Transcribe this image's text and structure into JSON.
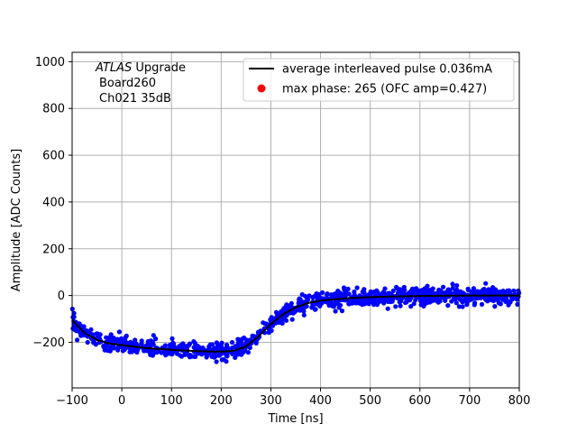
{
  "chart_data": {
    "type": "scatter",
    "xlabel": "Time [ns]",
    "ylabel": "Amplitude [ADC Counts]",
    "xlim": [
      -100,
      800
    ],
    "ylim": [
      -395,
      1040
    ],
    "x_ticks": [
      -100,
      0,
      100,
      200,
      300,
      400,
      500,
      600,
      700,
      800
    ],
    "y_ticks": [
      -200,
      0,
      200,
      400,
      600,
      800,
      1000
    ],
    "grid": true,
    "legend_position": "top-right",
    "annotation": {
      "line1_italic": "ATLAS",
      "line1_rest": " Upgrade",
      "line2": "Board260",
      "line3": "Ch021 35dB"
    },
    "series": [
      {
        "name": "average interleaved pulse 0.036mA",
        "kind": "line",
        "color": "#000000",
        "x": [
          -100,
          -75,
          -50,
          -25,
          0,
          50,
          100,
          150,
          200,
          225,
          250,
          275,
          300,
          325,
          350,
          375,
          400,
          450,
          500,
          550,
          600,
          700,
          800
        ],
        "y": [
          -105,
          -160,
          -190,
          -205,
          -212,
          -225,
          -232,
          -238,
          -240,
          -236,
          -218,
          -175,
          -122,
          -80,
          -50,
          -32,
          -22,
          -12,
          -7,
          -4,
          -2,
          0,
          0
        ]
      },
      {
        "name": "samples",
        "kind": "scatter",
        "color": "#0000ff",
        "noise_sigma": 18,
        "density_per_ns": 12
      },
      {
        "name": "max phase: 265 (OFC amp=0.427)",
        "kind": "marker",
        "color": "#ff0000"
      }
    ]
  }
}
